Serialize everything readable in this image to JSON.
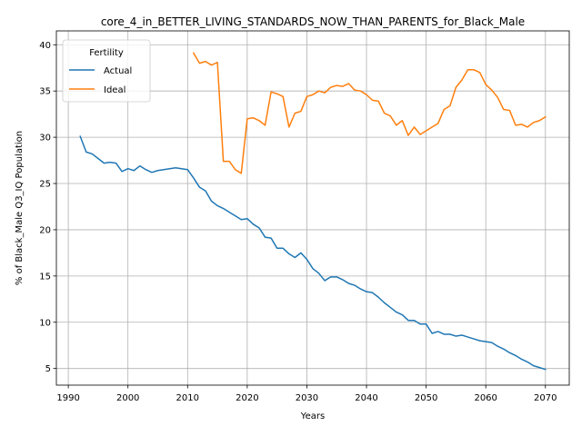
{
  "chart_data": {
    "type": "line",
    "title": "core_4_in_BETTER_LIVING_STANDARDS_NOW_THAN_PARENTS_for_Black_Male",
    "xlabel": "Years",
    "ylabel": "% of Black_Male Q3_IQ Population",
    "xlim": [
      1988,
      2074
    ],
    "ylim": [
      3.2,
      41.5
    ],
    "xticks": [
      1990,
      2000,
      2010,
      2020,
      2030,
      2040,
      2050,
      2060,
      2070
    ],
    "yticks": [
      5,
      10,
      15,
      20,
      25,
      30,
      35,
      40
    ],
    "grid": true,
    "legend": {
      "title": "Fertility",
      "placement": "upper-left"
    },
    "series": [
      {
        "name": "Actual",
        "color": "#1f77b4",
        "x": [
          1992,
          1993,
          1994,
          1995,
          1996,
          1997,
          1998,
          1999,
          2000,
          2001,
          2002,
          2003,
          2004,
          2005,
          2006,
          2007,
          2008,
          2009,
          2010,
          2011,
          2012,
          2013,
          2014,
          2015,
          2016,
          2017,
          2018,
          2019,
          2020,
          2021,
          2022,
          2023,
          2024,
          2025,
          2026,
          2027,
          2028,
          2029,
          2030,
          2031,
          2032,
          2033,
          2034,
          2035,
          2036,
          2037,
          2038,
          2039,
          2040,
          2041,
          2042,
          2043,
          2044,
          2045,
          2046,
          2047,
          2048,
          2049,
          2050,
          2051,
          2052,
          2053,
          2054,
          2055,
          2056,
          2057,
          2058,
          2059,
          2060,
          2061,
          2062,
          2063,
          2064,
          2065,
          2066,
          2067,
          2068,
          2069,
          2070
        ],
        "values": [
          30.1,
          28.4,
          28.2,
          27.7,
          27.2,
          27.3,
          27.2,
          26.3,
          26.6,
          26.4,
          26.9,
          26.5,
          26.2,
          26.4,
          26.5,
          26.6,
          26.7,
          26.6,
          26.5,
          25.6,
          24.6,
          24.2,
          23.1,
          22.6,
          22.3,
          21.9,
          21.5,
          21.1,
          21.2,
          20.6,
          20.2,
          19.2,
          19.1,
          18.0,
          18.0,
          17.4,
          17.0,
          17.5,
          16.8,
          15.8,
          15.3,
          14.5,
          14.9,
          14.9,
          14.6,
          14.2,
          14.0,
          13.6,
          13.3,
          13.2,
          12.7,
          12.1,
          11.6,
          11.1,
          10.8,
          10.2,
          10.2,
          9.8,
          9.8,
          8.8,
          9.0,
          8.7,
          8.7,
          8.5,
          8.6,
          8.4,
          8.2,
          8.0,
          7.9,
          7.8,
          7.4,
          7.1,
          6.7,
          6.4,
          6.0,
          5.7,
          5.3,
          5.1,
          4.9
        ]
      },
      {
        "name": "Ideal",
        "color": "#ff7f0e",
        "x": [
          2011,
          2012,
          2013,
          2014,
          2015,
          2016,
          2017,
          2018,
          2019,
          2020,
          2021,
          2022,
          2023,
          2024,
          2025,
          2026,
          2027,
          2028,
          2029,
          2030,
          2031,
          2032,
          2033,
          2034,
          2035,
          2036,
          2037,
          2038,
          2039,
          2040,
          2041,
          2042,
          2043,
          2044,
          2045,
          2046,
          2047,
          2048,
          2049,
          2050,
          2051,
          2052,
          2053,
          2054,
          2055,
          2056,
          2057,
          2058,
          2059,
          2060,
          2061,
          2062,
          2063,
          2064,
          2065,
          2066,
          2067,
          2068,
          2069,
          2070
        ],
        "values": [
          39.1,
          38.0,
          38.2,
          37.8,
          38.1,
          27.4,
          27.4,
          26.5,
          26.1,
          32.0,
          32.1,
          31.8,
          31.3,
          34.9,
          34.7,
          34.4,
          31.1,
          32.6,
          32.8,
          34.4,
          34.6,
          35.0,
          34.8,
          35.4,
          35.6,
          35.5,
          35.8,
          35.1,
          35.0,
          34.6,
          34.0,
          33.9,
          32.6,
          32.3,
          31.3,
          31.8,
          30.2,
          31.1,
          30.3,
          30.7,
          31.1,
          31.5,
          33.0,
          33.4,
          35.4,
          36.2,
          37.3,
          37.3,
          37.0,
          35.7,
          35.1,
          34.3,
          33.0,
          32.9,
          31.3,
          31.4,
          31.1,
          31.6,
          31.8,
          32.2
        ]
      }
    ]
  }
}
